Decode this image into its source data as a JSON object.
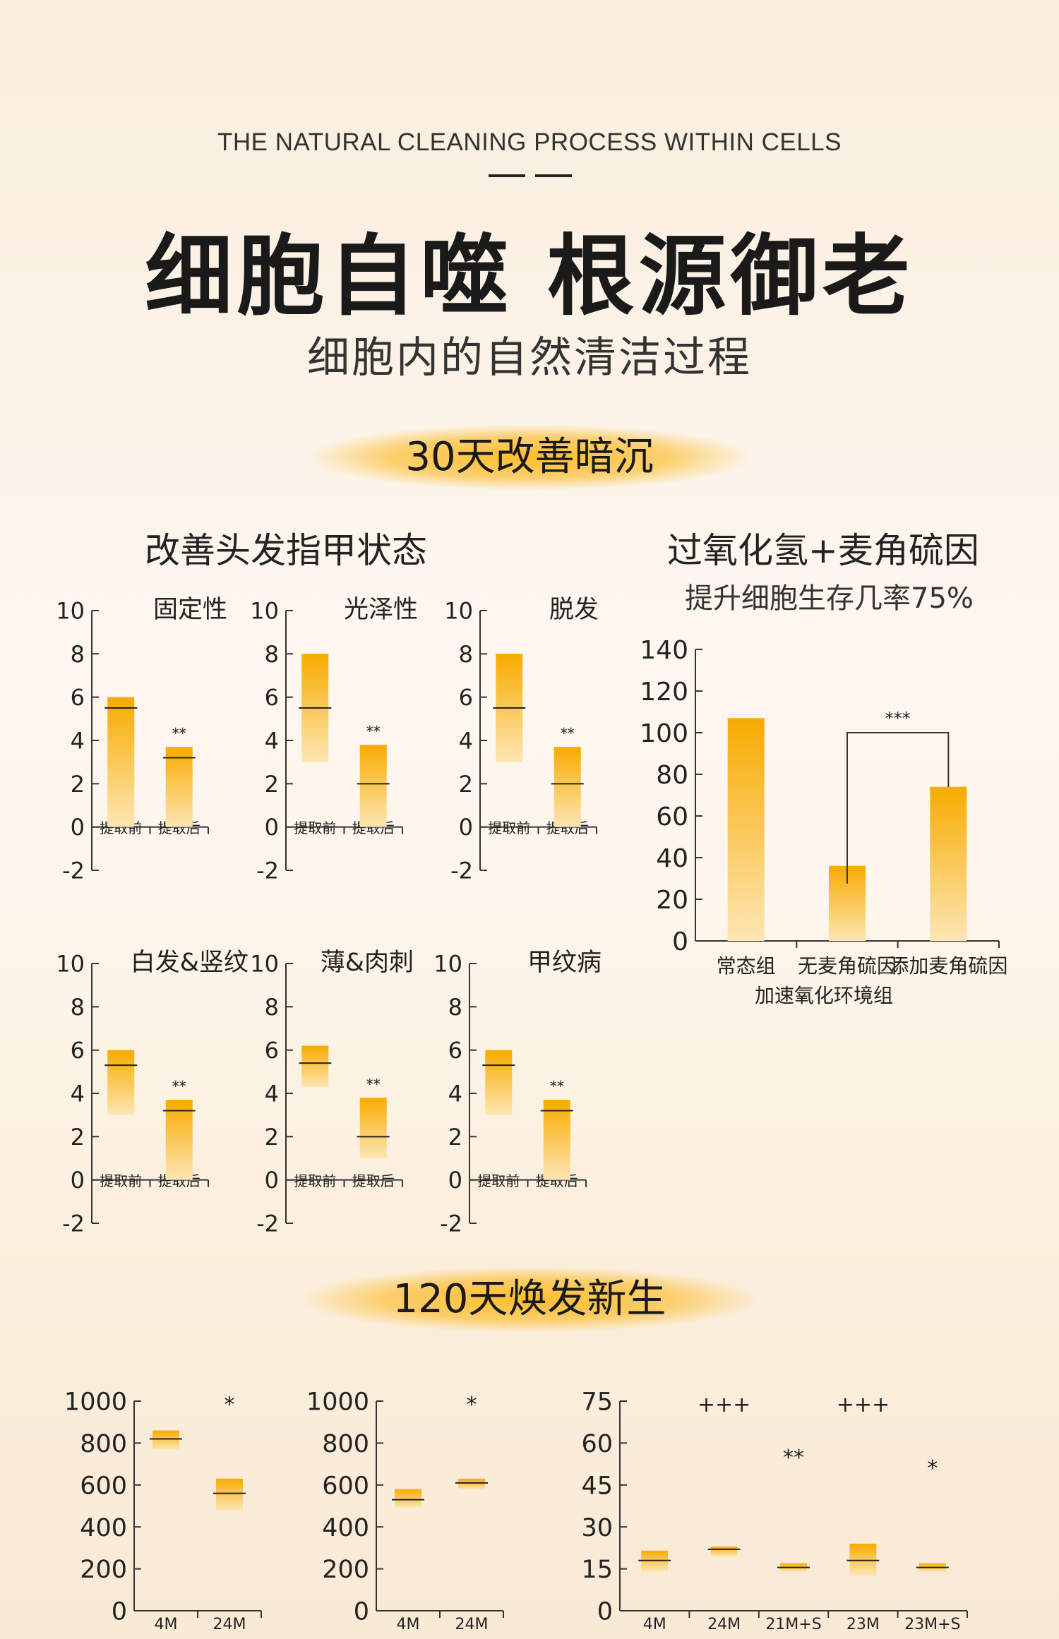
{
  "header": {
    "subtitle_en": "THE NATURAL CLEANING PROCESS WITHIN CELLS",
    "title": "细胞自噬 根源御老",
    "subtitle": "细胞内的自然清洁过程"
  },
  "section1": {
    "banner": "30天改善暗沉",
    "left_heading": "改善头发指甲状态",
    "right_heading": "过氧化氢+麦角硫因",
    "right_subheading": "提升细胞生存几率75%"
  },
  "section2": {
    "banner": "120天焕发新生"
  },
  "colors": {
    "bar_top": "#f8ab00",
    "bar_bottom": "#fde6b4",
    "axis": "#333333"
  },
  "chart_data": [
    {
      "type": "bar",
      "title": "固定性",
      "ylim": [
        -2,
        10
      ],
      "yticks": [
        -2,
        0,
        2,
        4,
        6,
        8,
        10
      ],
      "categories": [
        "提取前",
        "提取后"
      ],
      "boxes": [
        {
          "low": 0,
          "high": 6,
          "mid": 5.5,
          "sig": ""
        },
        {
          "low": 0,
          "high": 3.7,
          "mid": 3.2,
          "sig": "**"
        }
      ]
    },
    {
      "type": "bar",
      "title": "光泽性",
      "ylim": [
        -2,
        10
      ],
      "yticks": [
        -2,
        0,
        2,
        4,
        6,
        8,
        10
      ],
      "categories": [
        "提取前",
        "提取后"
      ],
      "boxes": [
        {
          "low": 3,
          "high": 8,
          "mid": 5.5,
          "sig": ""
        },
        {
          "low": 0,
          "high": 3.8,
          "mid": 2,
          "sig": "**"
        }
      ]
    },
    {
      "type": "bar",
      "title": "脱发",
      "ylim": [
        -2,
        10
      ],
      "yticks": [
        -2,
        0,
        2,
        4,
        6,
        8,
        10
      ],
      "categories": [
        "提取前",
        "提取后"
      ],
      "boxes": [
        {
          "low": 3,
          "high": 8,
          "mid": 5.5,
          "sig": ""
        },
        {
          "low": 0,
          "high": 3.7,
          "mid": 2,
          "sig": "**"
        }
      ]
    },
    {
      "type": "bar",
      "title": "白发&竖纹",
      "ylim": [
        -2,
        10
      ],
      "yticks": [
        -2,
        0,
        2,
        4,
        6,
        8,
        10
      ],
      "categories": [
        "提取前",
        "提取后"
      ],
      "boxes": [
        {
          "low": 3,
          "high": 6,
          "mid": 5.3,
          "sig": ""
        },
        {
          "low": 0,
          "high": 3.7,
          "mid": 3.2,
          "sig": "**"
        }
      ]
    },
    {
      "type": "bar",
      "title": "薄&肉刺",
      "ylim": [
        -2,
        10
      ],
      "yticks": [
        -2,
        0,
        2,
        4,
        6,
        8,
        10
      ],
      "categories": [
        "提取前",
        "提取后"
      ],
      "boxes": [
        {
          "low": 4.3,
          "high": 6.2,
          "mid": 5.4,
          "sig": ""
        },
        {
          "low": 1,
          "high": 3.8,
          "mid": 2,
          "sig": "**"
        }
      ]
    },
    {
      "type": "bar",
      "title": "甲纹病",
      "ylim": [
        -2,
        10
      ],
      "yticks": [
        -2,
        0,
        2,
        4,
        6,
        8,
        10
      ],
      "categories": [
        "提取前",
        "提取后"
      ],
      "boxes": [
        {
          "low": 3,
          "high": 6,
          "mid": 5.3,
          "sig": ""
        },
        {
          "low": 0,
          "high": 3.7,
          "mid": 3.2,
          "sig": "**"
        }
      ]
    },
    {
      "type": "bar",
      "title": "",
      "ylim": [
        0,
        140
      ],
      "yticks": [
        0,
        20,
        40,
        60,
        80,
        100,
        120,
        140
      ],
      "categories": [
        "常态组",
        "无麦角硫因\n加速氧化环境组",
        "添加麦角硫因"
      ],
      "values": [
        107,
        36,
        74
      ],
      "significance": {
        "from": 1,
        "to": 2,
        "label": "***"
      }
    },
    {
      "type": "bar",
      "title": "",
      "ylim": [
        0,
        1000
      ],
      "yticks": [
        0,
        200,
        400,
        600,
        800,
        1000
      ],
      "categories": [
        "4M",
        "24M"
      ],
      "boxes": [
        {
          "low": 770,
          "high": 860,
          "mid": 820,
          "sig": ""
        },
        {
          "low": 480,
          "high": 630,
          "mid": 560,
          "sig": "*"
        }
      ]
    },
    {
      "type": "bar",
      "title": "",
      "ylim": [
        0,
        1000
      ],
      "yticks": [
        0,
        200,
        400,
        600,
        800,
        1000
      ],
      "categories": [
        "4M",
        "24M"
      ],
      "boxes": [
        {
          "low": 490,
          "high": 580,
          "mid": 530,
          "sig": ""
        },
        {
          "low": 580,
          "high": 630,
          "mid": 610,
          "sig": "*"
        }
      ]
    },
    {
      "type": "bar",
      "title": "",
      "ylim": [
        0,
        75
      ],
      "yticks": [
        0,
        15,
        30,
        45,
        60,
        75
      ],
      "categories": [
        "4M",
        "24M",
        "21M+S",
        "23M",
        "23M+S"
      ],
      "boxes": [
        {
          "low": 14,
          "high": 21.5,
          "mid": 18,
          "sig": ""
        },
        {
          "low": 19.5,
          "high": 23,
          "mid": 22,
          "sig": "+++"
        },
        {
          "low": 14,
          "high": 17,
          "mid": 15.5,
          "sig": "**"
        },
        {
          "low": 12.5,
          "high": 24,
          "mid": 18,
          "sig": "+++"
        },
        {
          "low": 14,
          "high": 17,
          "mid": 15.5,
          "sig": "*"
        }
      ]
    }
  ]
}
